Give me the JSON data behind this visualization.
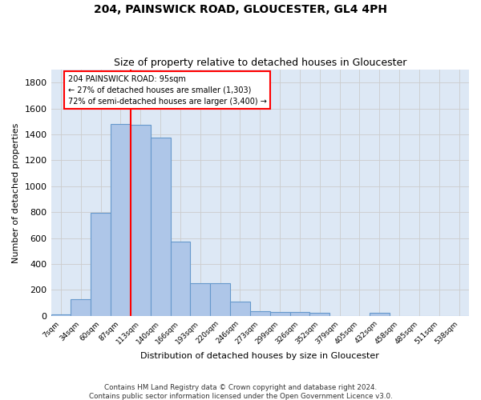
{
  "title": "204, PAINSWICK ROAD, GLOUCESTER, GL4 4PH",
  "subtitle": "Size of property relative to detached houses in Gloucester",
  "xlabel": "Distribution of detached houses by size in Gloucester",
  "ylabel": "Number of detached properties",
  "footer_line1": "Contains HM Land Registry data © Crown copyright and database right 2024.",
  "footer_line2": "Contains public sector information licensed under the Open Government Licence v3.0.",
  "bin_labels": [
    "7sqm",
    "34sqm",
    "60sqm",
    "87sqm",
    "113sqm",
    "140sqm",
    "166sqm",
    "193sqm",
    "220sqm",
    "246sqm",
    "273sqm",
    "299sqm",
    "326sqm",
    "352sqm",
    "379sqm",
    "405sqm",
    "432sqm",
    "458sqm",
    "485sqm",
    "511sqm",
    "538sqm"
  ],
  "bar_values": [
    10,
    130,
    795,
    1480,
    1475,
    1375,
    570,
    250,
    250,
    110,
    35,
    30,
    30,
    20,
    0,
    0,
    20,
    0,
    0,
    0,
    0
  ],
  "bar_color": "#aec6e8",
  "bar_edge_color": "#6699cc",
  "grid_color": "#cccccc",
  "bg_color": "#dde8f5",
  "ann_line1": "204 PAINSWICK ROAD: 95sqm",
  "ann_line2": "← 27% of detached houses are smaller (1,303)",
  "ann_line3": "72% of semi-detached houses are larger (3,400) →",
  "red_line_x": 3.5,
  "ylim": [
    0,
    1900
  ],
  "yticks": [
    0,
    200,
    400,
    600,
    800,
    1000,
    1200,
    1400,
    1600,
    1800
  ]
}
